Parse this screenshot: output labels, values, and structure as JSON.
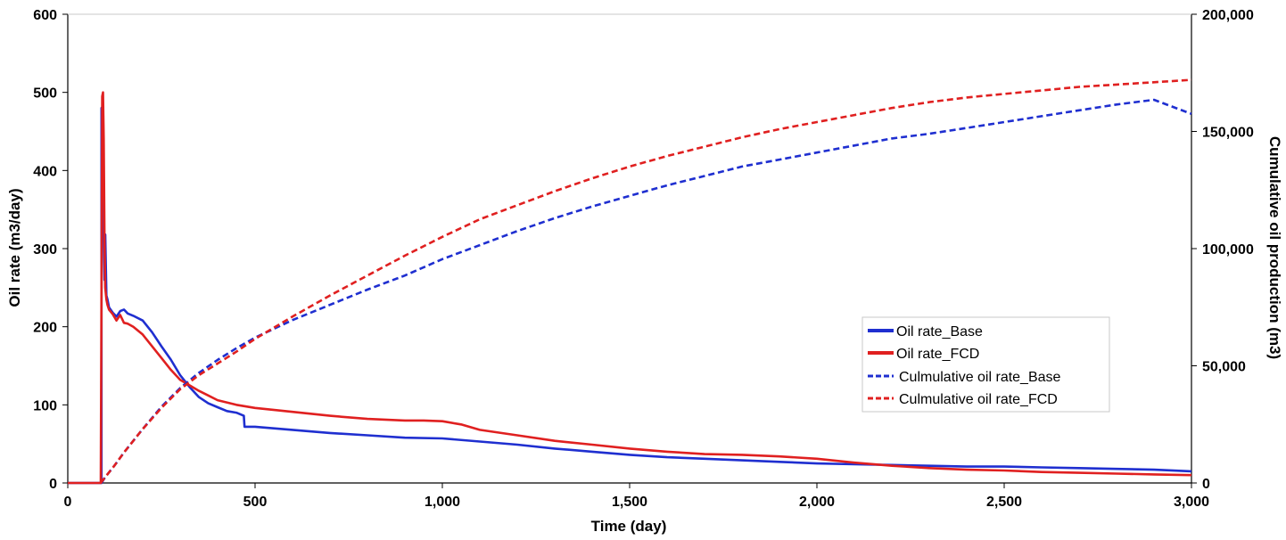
{
  "chart_data": {
    "type": "line",
    "title": "",
    "xlabel": "Time (day)",
    "ylabel": "Oil rate (m3/day)",
    "y2label": "Cumulative oil production (m3)",
    "xlim": [
      0,
      3000
    ],
    "ylim": [
      0,
      600
    ],
    "y2lim": [
      0,
      200000
    ],
    "x_ticks": [
      0,
      500,
      1000,
      1500,
      2000,
      2500,
      3000
    ],
    "x_tick_labels": [
      "0",
      "500",
      "1,000",
      "1,500",
      "2,000",
      "2,500",
      "3,000"
    ],
    "y_ticks": [
      0,
      100,
      200,
      300,
      400,
      500,
      600
    ],
    "y_tick_labels": [
      "0",
      "100",
      "200",
      "300",
      "400",
      "500",
      "600"
    ],
    "y2_ticks": [
      0,
      50000,
      100000,
      150000,
      200000
    ],
    "y2_tick_labels": [
      "0",
      "50,000",
      "100,000",
      "150,000",
      "200,000"
    ],
    "grid": false,
    "legend_position": "center-right",
    "series": [
      {
        "name": "Oil rate_Base",
        "axis": "left",
        "color": "#1f2fd0",
        "style": "solid",
        "x": [
          0,
          90,
          90,
          94,
          96,
          98,
          100,
          103,
          106,
          110,
          120,
          130,
          140,
          150,
          160,
          175,
          200,
          225,
          250,
          275,
          300,
          325,
          350,
          375,
          400,
          425,
          450,
          470,
          472,
          500,
          600,
          700,
          800,
          900,
          1000,
          1100,
          1200,
          1300,
          1400,
          1500,
          1600,
          1700,
          1800,
          1900,
          2000,
          2100,
          2200,
          2300,
          2400,
          2500,
          2600,
          2700,
          2800,
          2900,
          3000
        ],
        "y": [
          0,
          0,
          480,
          482,
          320,
          260,
          318,
          240,
          235,
          225,
          218,
          213,
          220,
          222,
          217,
          214,
          208,
          193,
          175,
          158,
          138,
          123,
          110,
          102,
          97,
          92,
          90,
          86,
          72,
          72,
          68,
          64,
          61,
          58,
          57,
          53,
          49,
          44,
          40,
          36,
          33,
          31,
          29,
          27,
          25,
          24,
          23,
          22,
          21,
          21,
          20,
          19,
          18,
          17,
          15
        ]
      },
      {
        "name": "Oil rate_FCD",
        "axis": "left",
        "color": "#e02020",
        "style": "solid",
        "x": [
          0,
          88,
          92,
          94,
          96,
          98,
          100,
          103,
          106,
          110,
          120,
          130,
          140,
          150,
          160,
          175,
          200,
          225,
          250,
          275,
          300,
          325,
          350,
          375,
          400,
          450,
          500,
          600,
          700,
          800,
          900,
          950,
          1000,
          1050,
          1100,
          1200,
          1300,
          1400,
          1500,
          1600,
          1700,
          1800,
          1900,
          2000,
          2100,
          2200,
          2300,
          2400,
          2500,
          2600,
          2700,
          2800,
          2900,
          3000
        ],
        "y": [
          0,
          0,
          495,
          500,
          440,
          310,
          250,
          235,
          228,
          222,
          216,
          208,
          215,
          205,
          204,
          200,
          190,
          175,
          160,
          145,
          132,
          125,
          118,
          112,
          106,
          100,
          96,
          91,
          86,
          82,
          80,
          80,
          79,
          75,
          68,
          61,
          54,
          49,
          44,
          40,
          37,
          36,
          34,
          31,
          26,
          22,
          19,
          17,
          16,
          14,
          13,
          12,
          11,
          10
        ]
      },
      {
        "name": "Culmulative oil rate_Base",
        "axis": "right",
        "color": "#1f2fd0",
        "style": "dashed",
        "x": [
          90,
          100,
          125,
          150,
          200,
          250,
          300,
          350,
          400,
          450,
          500,
          600,
          700,
          800,
          900,
          1000,
          1100,
          1200,
          1300,
          1400,
          1500,
          1600,
          1700,
          1800,
          1900,
          2000,
          2100,
          2200,
          2300,
          2400,
          2500,
          2600,
          2700,
          2800,
          2900,
          3000
        ],
        "y": [
          0,
          2500,
          7500,
          13000,
          23000,
          32500,
          40500,
          47000,
          52500,
          57500,
          62000,
          69500,
          76000,
          82500,
          88500,
          95500,
          101500,
          107500,
          113000,
          118000,
          122500,
          127000,
          131000,
          135000,
          138000,
          141000,
          144000,
          147000,
          149000,
          151500,
          154000,
          156500,
          159000,
          161500,
          163500,
          157500
        ]
      },
      {
        "name": "Culmulative oil rate_FCD",
        "axis": "right",
        "color": "#e02020",
        "style": "dashed",
        "x": [
          88,
          100,
          125,
          150,
          200,
          250,
          300,
          350,
          400,
          450,
          500,
          600,
          700,
          800,
          900,
          1000,
          1100,
          1200,
          1300,
          1400,
          1500,
          1600,
          1700,
          1800,
          1900,
          2000,
          2100,
          2200,
          2300,
          2400,
          2500,
          2600,
          2700,
          2800,
          2900,
          3000
        ],
        "y": [
          0,
          2500,
          7500,
          13000,
          23000,
          32000,
          40000,
          46000,
          51000,
          56000,
          61500,
          71000,
          80000,
          88500,
          97000,
          105000,
          112500,
          118500,
          124500,
          130000,
          135000,
          139500,
          143500,
          147500,
          151000,
          154000,
          157000,
          160000,
          162500,
          164500,
          166000,
          167500,
          169000,
          170000,
          171000,
          172000
        ]
      }
    ]
  }
}
